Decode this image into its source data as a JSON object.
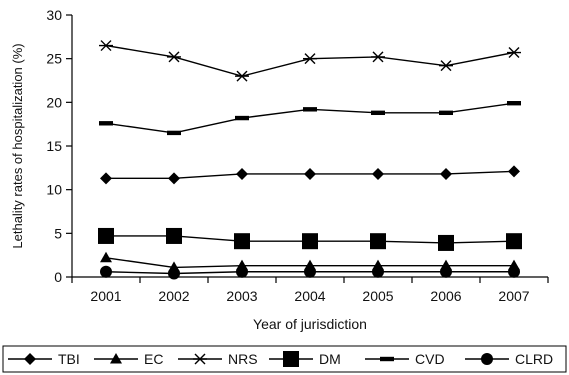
{
  "chart_data": {
    "type": "line",
    "xlabel": "Year of jurisdiction",
    "ylabel": "Lethality rates of hospitalization (%)",
    "categories": [
      "2001",
      "2002",
      "2003",
      "2004",
      "2005",
      "2006",
      "2007"
    ],
    "ylim": [
      0,
      30
    ],
    "yticks": [
      0,
      5,
      10,
      15,
      20,
      25,
      30
    ],
    "grid": false,
    "legend_position": "bottom",
    "series": [
      {
        "name": "TBI",
        "marker": "diamond",
        "values": [
          11.3,
          11.3,
          11.8,
          11.8,
          11.8,
          11.8,
          12.1
        ]
      },
      {
        "name": "EC",
        "marker": "triangle",
        "values": [
          2.2,
          1.1,
          1.3,
          1.3,
          1.3,
          1.3,
          1.3
        ]
      },
      {
        "name": "NRS",
        "marker": "asterisk",
        "values": [
          26.5,
          25.2,
          23.0,
          25.0,
          25.2,
          24.2,
          25.7
        ]
      },
      {
        "name": "DM",
        "marker": "square",
        "values": [
          4.7,
          4.7,
          4.1,
          4.1,
          4.1,
          3.9,
          4.1
        ]
      },
      {
        "name": "CVD",
        "marker": "dash",
        "values": [
          17.6,
          16.5,
          18.2,
          19.2,
          18.8,
          18.8,
          19.9
        ]
      },
      {
        "name": "CLRD",
        "marker": "circle",
        "values": [
          0.6,
          0.4,
          0.6,
          0.6,
          0.6,
          0.6,
          0.6
        ]
      }
    ]
  }
}
